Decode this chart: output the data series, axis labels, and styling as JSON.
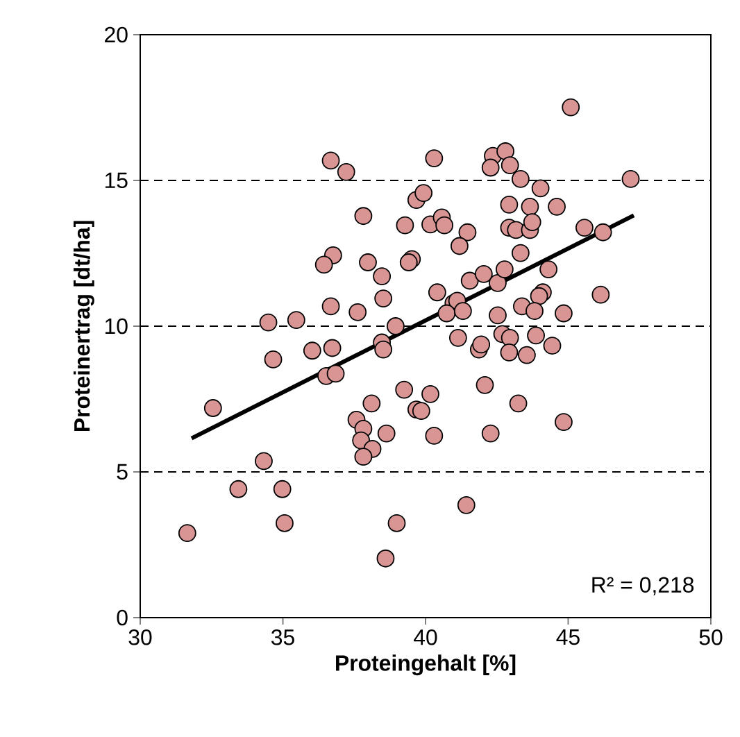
{
  "chart_data": {
    "type": "scatter",
    "xlabel": "Proteingehalt [%]",
    "ylabel": "Proteinertrag [dt/ha]",
    "xlim": [
      30,
      50
    ],
    "ylim": [
      0,
      20
    ],
    "xticks": [
      30,
      35,
      40,
      45,
      50
    ],
    "yticks": [
      0,
      5,
      10,
      15,
      20
    ],
    "grid": "y",
    "annotations": [
      "R² = 0,218"
    ],
    "series": [
      {
        "marker": "circle",
        "color": "#d99594",
        "x": [
          31.65,
          32.55,
          34.66,
          36.03,
          36.73,
          36.52,
          36.85,
          34.33,
          33.44,
          34.98,
          35.06,
          38.99,
          38.6,
          38.47,
          38.52,
          39.25,
          38.11,
          37.58,
          37.82,
          38.63,
          37.74,
          38.14,
          37.82,
          39.68,
          39.85,
          41.14,
          41.87,
          41.95,
          42.69,
          42.96,
          42.93,
          43.55,
          43.87,
          44.44,
          40.17,
          40.3,
          42.08,
          42.28,
          43.25,
          44.84,
          41.43,
          36.68,
          37.22,
          37.82,
          36.76,
          36.44,
          37.98,
          38.47,
          36.68,
          37.62,
          38.52,
          34.49,
          35.47,
          38.95,
          39.68,
          39.93,
          39.28,
          39.52,
          39.41,
          40.3,
          40.17,
          40.57,
          40.66,
          41.47,
          41.19,
          40.41,
          40.98,
          41.11,
          40.74,
          41.31,
          41.55,
          42.04,
          42.53,
          42.77,
          43.33,
          42.93,
          42.93,
          43.17,
          43.66,
          43.66,
          43.74,
          42.36,
          42.8,
          42.28,
          42.96,
          43.33,
          44.03,
          44.6,
          45.09,
          47.19,
          45.57,
          46.22,
          44.31,
          44.11,
          43.98,
          43.38,
          43.82,
          44.84,
          46.14,
          42.53
        ],
        "values": [
          2.9,
          7.19,
          8.86,
          9.16,
          9.25,
          8.29,
          8.37,
          5.37,
          4.41,
          4.41,
          3.24,
          3.24,
          2.03,
          9.44,
          9.2,
          7.82,
          7.35,
          6.79,
          6.48,
          6.32,
          6.08,
          5.79,
          5.52,
          7.14,
          7.09,
          9.6,
          9.2,
          9.37,
          9.73,
          9.6,
          9.1,
          9.01,
          9.68,
          9.33,
          7.67,
          6.24,
          7.98,
          6.32,
          7.35,
          6.71,
          3.86,
          15.68,
          15.29,
          13.78,
          12.43,
          12.11,
          12.19,
          11.71,
          10.68,
          10.48,
          10.95,
          10.13,
          10.21,
          10.0,
          14.33,
          14.57,
          13.46,
          12.3,
          12.19,
          15.76,
          13.49,
          13.73,
          13.46,
          13.22,
          12.75,
          11.16,
          10.79,
          10.87,
          10.44,
          10.52,
          11.56,
          11.79,
          11.48,
          11.95,
          12.51,
          14.17,
          13.38,
          13.3,
          13.3,
          14.1,
          13.57,
          15.84,
          16.0,
          15.44,
          15.52,
          15.05,
          14.73,
          14.1,
          17.51,
          15.05,
          13.38,
          13.22,
          11.95,
          11.16,
          11.03,
          10.68,
          10.52,
          10.44,
          11.08,
          10.37
        ]
      },
      {
        "type": "line",
        "marker": "none",
        "color": "#000000",
        "x": [
          31.8,
          47.3
        ],
        "values": [
          6.15,
          13.8
        ]
      }
    ]
  }
}
